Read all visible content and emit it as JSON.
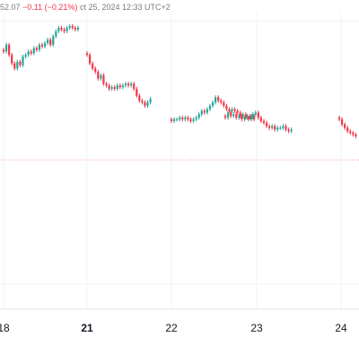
{
  "header": {
    "price_fragment": "52.07",
    "change": "−0.11 (−0.21%)",
    "datetime_fragment": "ct 25, 2024 12:33 UTC+2"
  },
  "colors": {
    "up": "#26a69a",
    "down": "#f23645",
    "grid": "#f0f3fa",
    "axis_text": "#131722",
    "dotted_line": "#f7a6ad",
    "background": "#ffffff"
  },
  "chart_data": {
    "type": "candlestick",
    "title": "",
    "xlabel": "",
    "ylabel": "",
    "x_ticks": [
      {
        "label": "18",
        "day": 18,
        "bold": false
      },
      {
        "label": "21",
        "day": 21,
        "bold": true
      },
      {
        "label": "22",
        "day": 22,
        "bold": false
      },
      {
        "label": "23",
        "day": 23,
        "bold": false
      },
      {
        "label": "24",
        "day": 24,
        "bold": false
      }
    ],
    "grid": true,
    "legend": "none",
    "reference_lines": [
      {
        "style": "dotted",
        "value": 52.18
      },
      {
        "style": "solid",
        "value": 51.45
      },
      {
        "style": "solid",
        "value": 53.0
      }
    ],
    "ylim": [
      51.3,
      53.05
    ],
    "sessions": [
      {
        "day": 18,
        "closes": [
          52.82,
          52.86,
          52.8,
          52.75,
          52.72,
          52.76,
          52.74,
          52.79,
          52.8,
          52.82,
          52.81,
          52.84,
          52.83,
          52.86,
          52.85,
          52.87,
          52.89,
          52.86,
          52.91,
          52.94,
          52.96,
          52.95,
          52.94,
          52.96,
          52.97,
          52.96,
          52.95,
          52.96
        ]
      },
      {
        "day": 21,
        "closes": [
          52.8,
          52.75,
          52.72,
          52.7,
          52.66,
          52.68,
          52.63,
          52.62,
          52.6,
          52.61,
          52.6,
          52.62,
          52.61,
          52.62,
          52.63,
          52.62,
          52.63,
          52.6,
          52.56,
          52.53,
          52.52,
          52.5,
          52.52,
          52.54
        ]
      },
      {
        "day": 22,
        "closes": [
          52.41,
          52.42,
          52.42,
          52.43,
          52.42,
          52.43,
          52.42,
          52.41,
          52.42,
          52.43,
          52.45,
          52.47,
          52.46,
          52.48,
          52.5,
          52.52,
          52.55,
          52.53,
          52.52,
          52.5,
          52.48,
          52.47,
          52.48,
          52.47,
          52.46,
          52.44,
          52.45,
          52.43,
          52.42,
          52.44,
          52.42
        ]
      },
      {
        "day": 23,
        "closes": [
          52.43,
          52.46,
          52.44,
          52.45,
          52.43,
          52.44,
          52.42,
          52.43,
          52.44,
          52.43,
          52.45,
          52.46,
          52.43,
          52.41,
          52.4,
          52.38,
          52.37,
          52.38,
          52.36,
          52.37,
          52.37,
          52.38,
          52.36,
          52.35,
          52.36
        ]
      },
      {
        "day": 24,
        "closes": [
          52.42,
          52.39,
          52.37,
          52.35,
          52.34,
          52.33,
          52.32
        ]
      }
    ]
  }
}
